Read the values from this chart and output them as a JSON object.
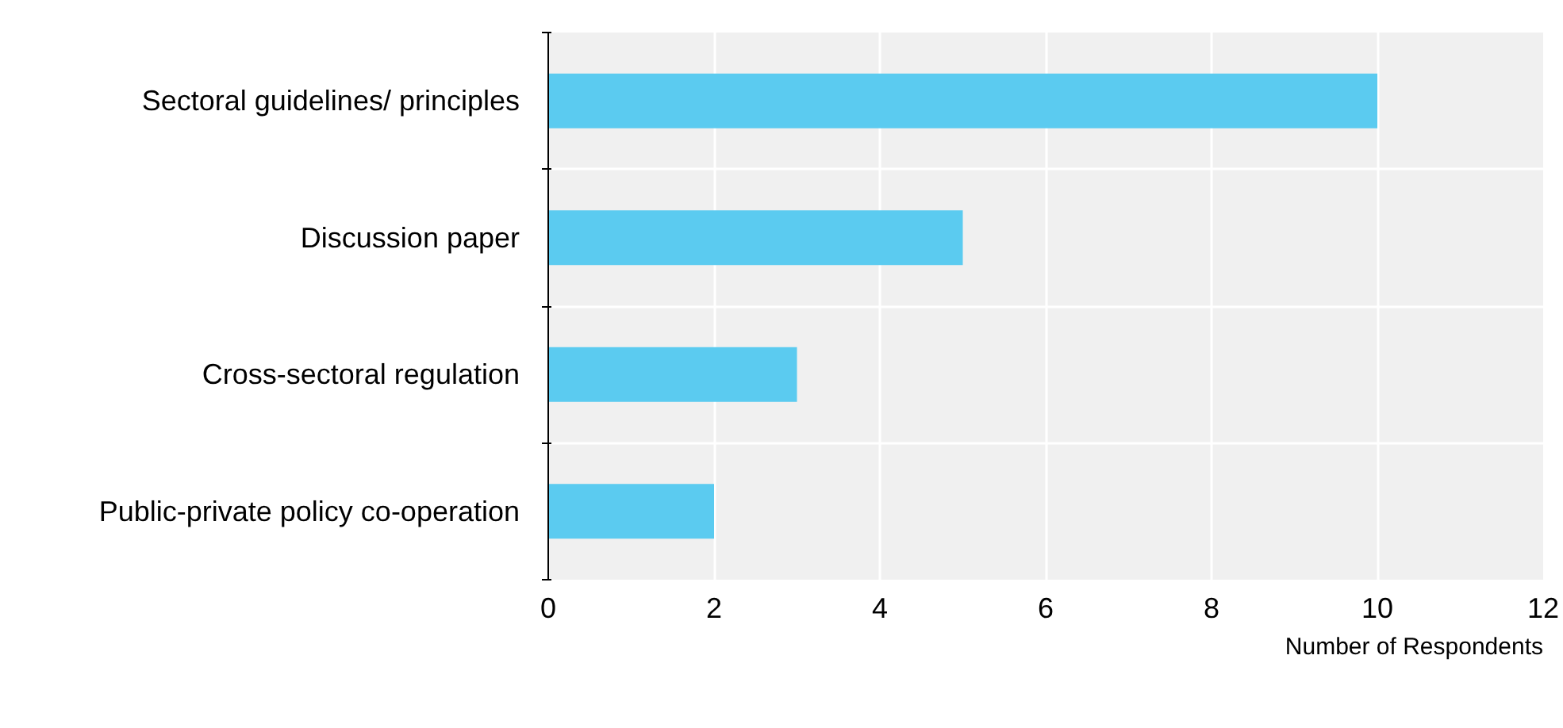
{
  "chart_data": {
    "type": "bar",
    "orientation": "horizontal",
    "xlabel": "Number of Respondents",
    "categories": [
      "Sectoral guidelines/ principles",
      "Discussion paper",
      "Cross-sectoral regulation",
      "Public-private policy co-operation"
    ],
    "values": [
      10,
      5,
      3,
      2
    ],
    "color": "#5bcbf0",
    "xlim": [
      0,
      12
    ],
    "xticks": [
      0,
      2,
      4,
      6,
      8,
      10,
      12
    ],
    "grid": true
  }
}
